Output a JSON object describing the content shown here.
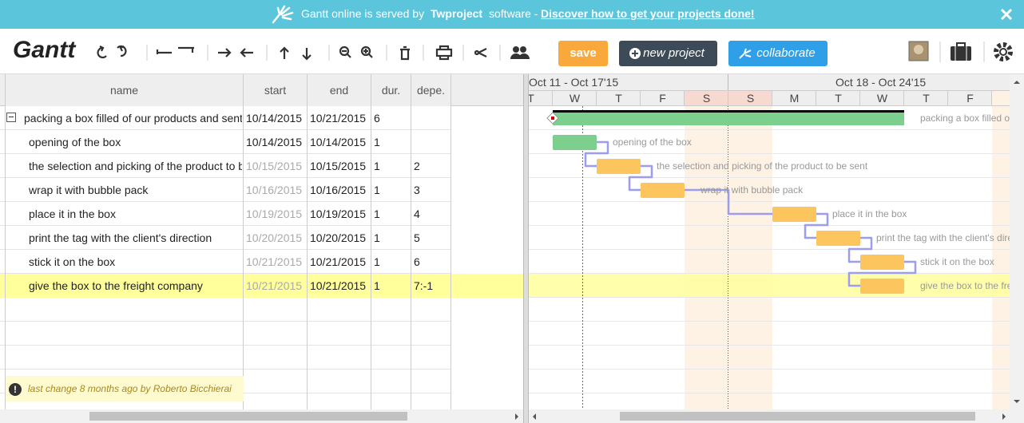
{
  "banner": {
    "prefix": "Gantt online is served by",
    "brand": "Twproject",
    "suffix": "software -",
    "link": "Discover how to get your projects done!"
  },
  "toolbar": {
    "logo": "Gantt",
    "save": "save",
    "new_project": "new project",
    "collaborate": "collaborate"
  },
  "table": {
    "columns": [
      "name",
      "start",
      "end",
      "dur.",
      "depe."
    ],
    "rows": [
      [
        "packing a box filled of our products and sent",
        "10/14/2015",
        "10/21/2015",
        "6",
        ""
      ],
      [
        "opening of the box",
        "10/14/2015",
        "10/14/2015",
        "1",
        ""
      ],
      [
        "the selection and picking of the product to be sent",
        "10/15/2015",
        "10/15/2015",
        "1",
        "2"
      ],
      [
        "wrap it with bubble pack",
        "10/16/2015",
        "10/16/2015",
        "1",
        "3"
      ],
      [
        "place it in the box",
        "10/19/2015",
        "10/19/2015",
        "1",
        "4"
      ],
      [
        "print the tag with the client's direction",
        "10/20/2015",
        "10/20/2015",
        "1",
        "5"
      ],
      [
        "stick it on the box",
        "10/21/2015",
        "10/21/2015",
        "1",
        "6"
      ],
      [
        "give the box to the freight company",
        "10/21/2015",
        "10/21/2015",
        "1",
        "7:-1"
      ]
    ]
  },
  "timeline": {
    "weeks": [
      "Oct 11 - Oct 17'15",
      "Oct 18 - Oct 24'15"
    ],
    "days": [
      "T",
      "W",
      "T",
      "F",
      "S",
      "S",
      "M",
      "T",
      "W",
      "T",
      "F"
    ]
  },
  "footer": {
    "last_change": "last change 8 months ago by Roberto Bicchierai"
  }
}
